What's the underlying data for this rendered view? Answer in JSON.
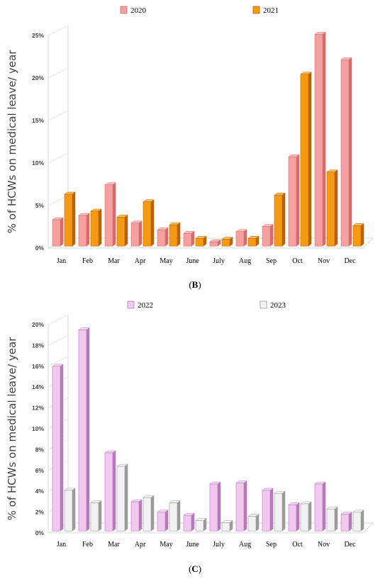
{
  "panels": [
    {
      "label_open": "(",
      "label_letter": "B",
      "label_close": ")"
    },
    {
      "label_open": "(",
      "label_letter": "C",
      "label_close": ")"
    }
  ],
  "chart_data": [
    {
      "type": "bar",
      "style": "3d-grouped",
      "ylabel": "% of HCWs on medical leave/ year",
      "ylim": [
        0,
        25
      ],
      "yticks": [
        "0%",
        "5%",
        "10%",
        "15%",
        "20%",
        "25%"
      ],
      "ytick_values": [
        0,
        5,
        10,
        15,
        20,
        25
      ],
      "categories": [
        "Jan",
        "Feb",
        "Mar",
        "Apr",
        "May",
        "June",
        "July",
        "Aug",
        "Sep",
        "Oct",
        "Nov",
        "Dec"
      ],
      "legend_position": "top-center",
      "grid": false,
      "series": [
        {
          "name": "2020",
          "color": "#f4a0a0",
          "side_color": "#d86a6a",
          "values": [
            3.1,
            3.6,
            7.2,
            2.7,
            1.9,
            1.5,
            0.5,
            1.7,
            2.3,
            10.5,
            24.9,
            21.9
          ]
        },
        {
          "name": "2021",
          "color": "#f59a12",
          "side_color": "#b86500",
          "values": [
            6.1,
            4.1,
            3.4,
            5.2,
            2.5,
            0.9,
            0.8,
            0.9,
            6.0,
            20.2,
            8.7,
            2.4
          ]
        }
      ]
    },
    {
      "type": "bar",
      "style": "3d-grouped",
      "ylabel": "% of HCWs on medical leave/ year",
      "ylim": [
        0,
        20
      ],
      "yticks": [
        "0%",
        "2%",
        "4%",
        "6%",
        "8%",
        "10%",
        "12%",
        "14%",
        "16%",
        "18%",
        "20%"
      ],
      "ytick_values": [
        0,
        2,
        4,
        6,
        8,
        10,
        12,
        14,
        16,
        18,
        20
      ],
      "categories": [
        "Jan",
        "Feb",
        "Mar",
        "Apr",
        "May",
        "June",
        "July",
        "Aug",
        "Sep",
        "Oct",
        "Nov",
        "Dec"
      ],
      "legend_position": "top-center",
      "grid": false,
      "series": [
        {
          "name": "2022",
          "color": "#f0c8f0",
          "side_color": "#b57ab8",
          "values": [
            15.8,
            19.3,
            7.5,
            2.8,
            1.8,
            1.5,
            4.5,
            4.6,
            3.9,
            2.5,
            4.5,
            1.6
          ]
        },
        {
          "name": "2023",
          "color": "#f2f2f2",
          "side_color": "#9a9a9a",
          "values": [
            3.9,
            2.7,
            6.2,
            3.2,
            2.7,
            1.0,
            0.8,
            1.4,
            3.6,
            2.6,
            2.1,
            1.8
          ]
        }
      ]
    }
  ]
}
